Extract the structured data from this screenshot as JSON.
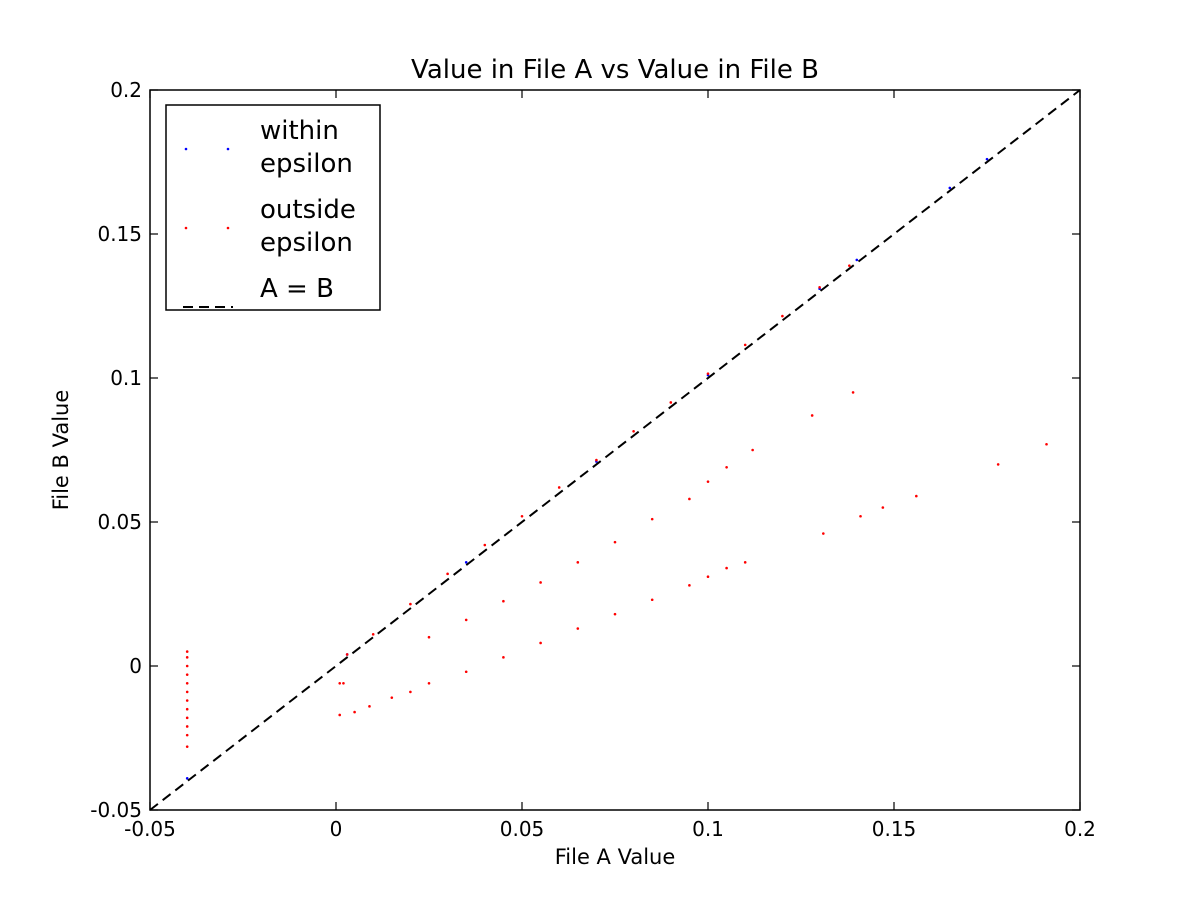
{
  "chart_data": {
    "type": "scatter",
    "title": "Value in File A vs Value in File B",
    "xlabel": "File A Value",
    "ylabel": "File B Value",
    "xlim": [
      -0.05,
      0.2
    ],
    "ylim": [
      -0.05,
      0.2
    ],
    "x_ticks": [
      -0.05,
      0,
      0.05,
      0.1,
      0.15,
      0.2
    ],
    "x_tick_labels": [
      "-0.05",
      "0",
      "0.05",
      "0.1",
      "0.15",
      "0.2"
    ],
    "y_ticks": [
      -0.05,
      0,
      0.05,
      0.1,
      0.15,
      0.2
    ],
    "y_tick_labels": [
      "-0.05",
      "0",
      "0.05",
      "0.1",
      "0.15",
      "0.2"
    ],
    "grid": false,
    "legend_position": "top-left",
    "legend": [
      {
        "label_lines": [
          "within",
          "epsilon"
        ],
        "marker": "point",
        "color": "#0000ff"
      },
      {
        "label_lines": [
          "outside",
          "epsilon"
        ],
        "marker": "point",
        "color": "#ff0000"
      },
      {
        "label_lines": [
          "A = B"
        ],
        "marker": "dashed-line",
        "color": "#000000"
      }
    ],
    "series": [
      {
        "name": "within epsilon",
        "color": "#0000ff",
        "points": [
          [
            -0.04,
            -0.039
          ],
          [
            0.003,
            0.004
          ],
          [
            0.035,
            0.036
          ],
          [
            0.07,
            0.071
          ],
          [
            0.1,
            0.101
          ],
          [
            0.13,
            0.131
          ],
          [
            0.14,
            0.141
          ],
          [
            0.165,
            0.166
          ],
          [
            0.175,
            0.176
          ]
        ]
      },
      {
        "name": "outside epsilon",
        "color": "#ff0000",
        "points": [
          [
            0.003,
            0.004
          ],
          [
            0.01,
            0.011
          ],
          [
            0.02,
            0.0215
          ],
          [
            0.03,
            0.032
          ],
          [
            0.04,
            0.042
          ],
          [
            0.05,
            0.052
          ],
          [
            0.06,
            0.062
          ],
          [
            0.07,
            0.0715
          ],
          [
            0.08,
            0.0815
          ],
          [
            0.09,
            0.0915
          ],
          [
            0.1,
            0.1015
          ],
          [
            0.11,
            0.1115
          ],
          [
            0.12,
            0.1215
          ],
          [
            0.13,
            0.1315
          ],
          [
            0.138,
            0.139
          ],
          [
            0.025,
            0.01
          ],
          [
            0.035,
            0.016
          ],
          [
            0.045,
            0.0225
          ],
          [
            0.055,
            0.029
          ],
          [
            0.065,
            0.036
          ],
          [
            0.075,
            0.043
          ],
          [
            0.085,
            0.051
          ],
          [
            0.095,
            0.058
          ],
          [
            0.1,
            0.064
          ],
          [
            0.105,
            0.069
          ],
          [
            0.112,
            0.075
          ],
          [
            0.025,
            -0.006
          ],
          [
            0.035,
            -0.002
          ],
          [
            0.045,
            0.003
          ],
          [
            0.055,
            0.008
          ],
          [
            0.065,
            0.013
          ],
          [
            0.075,
            0.018
          ],
          [
            0.085,
            0.023
          ],
          [
            0.095,
            0.028
          ],
          [
            0.1,
            0.031
          ],
          [
            0.105,
            0.034
          ],
          [
            0.11,
            0.036
          ],
          [
            0.001,
            -0.006
          ],
          [
            0.002,
            -0.006
          ],
          [
            0.001,
            -0.017
          ],
          [
            0.005,
            -0.016
          ],
          [
            0.009,
            -0.014
          ],
          [
            0.015,
            -0.011
          ],
          [
            0.02,
            -0.009
          ],
          [
            -0.04,
            0.005
          ],
          [
            -0.04,
            0.003
          ],
          [
            -0.04,
            0.0
          ],
          [
            -0.04,
            -0.003
          ],
          [
            -0.04,
            -0.006
          ],
          [
            -0.04,
            -0.009
          ],
          [
            -0.04,
            -0.012
          ],
          [
            -0.04,
            -0.015
          ],
          [
            -0.04,
            -0.018
          ],
          [
            -0.04,
            -0.021
          ],
          [
            -0.04,
            -0.024
          ],
          [
            -0.04,
            -0.028
          ],
          [
            0.128,
            0.087
          ],
          [
            0.139,
            0.095
          ],
          [
            0.131,
            0.046
          ],
          [
            0.141,
            0.052
          ],
          [
            0.147,
            0.055
          ],
          [
            0.156,
            0.059
          ],
          [
            0.178,
            0.07
          ],
          [
            0.191,
            0.077
          ]
        ]
      }
    ],
    "reference_line": {
      "name": "A = B",
      "x": [
        -0.05,
        0.2
      ],
      "y": [
        -0.05,
        0.2
      ],
      "style": "dashed",
      "color": "#000000"
    }
  }
}
